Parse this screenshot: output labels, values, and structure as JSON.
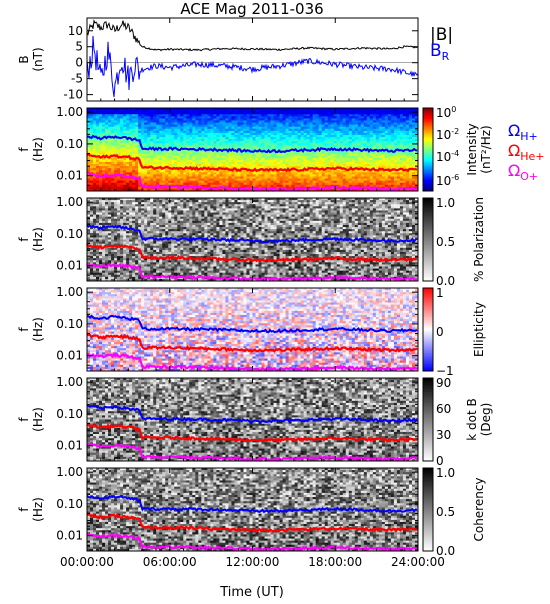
{
  "chart_data": {
    "type": "heatmap",
    "title": "ACE Mag 2011-036",
    "xlabel": "Time (UT)",
    "xticks": [
      "00:00:00",
      "06:00:00",
      "12:00:00",
      "18:00:00",
      "24:00:00"
    ],
    "xlim_hours": [
      0,
      24
    ],
    "line_colors": {
      "h": "#0000ff",
      "he": "#ff0000",
      "o": "#ff00ff"
    },
    "panels": [
      {
        "id": "b",
        "type": "line",
        "ylabel_top": "B",
        "ylabel_bot": "(nT)",
        "yticks": [
          "10",
          "5",
          "0",
          "-5",
          "-10"
        ],
        "ylim": [
          -12,
          14
        ],
        "legend": {
          "b": "|B|",
          "br_main": "B",
          "br_sub": "R"
        },
        "series": [
          {
            "key": "b",
            "color": "#000000",
            "x": [
              0,
              0.5,
              1,
              1.5,
              2,
              2.5,
              3,
              3.5,
              3.8,
              4,
              5,
              6,
              8,
              10,
              12,
              14,
              16,
              18,
              20,
              22,
              23,
              24
            ],
            "y": [
              9,
              12,
              11,
              12,
              10,
              12,
              11,
              8,
              6,
              5,
              4,
              4.2,
              4,
              4.4,
              4.3,
              4.1,
              4.6,
              4.2,
              4.6,
              4.3,
              5,
              4.8
            ]
          },
          {
            "key": "br",
            "color": "#0000ff",
            "x": [
              0,
              0.5,
              1,
              1.5,
              2,
              2.5,
              3,
              3.5,
              3.8,
              4,
              5,
              6,
              8,
              10,
              12,
              14,
              16,
              18,
              20,
              22,
              23,
              24
            ],
            "y": [
              -3,
              5,
              -6,
              4,
              -8,
              2,
              -5,
              0,
              -3,
              -2,
              -1,
              -1.5,
              -0.5,
              -1,
              -2,
              -1,
              0.5,
              -0.5,
              -1.5,
              -2,
              -3,
              -4
            ]
          }
        ]
      },
      {
        "id": "spec",
        "type": "spectrogram",
        "ylabel_top": "f",
        "ylabel_bot": "(Hz)",
        "yticks": [
          "1.00",
          "0.10",
          "0.01"
        ],
        "cbar": {
          "kind": "jet",
          "label_line1": "Intensity",
          "label_line2": "(nT²/Hz)",
          "ticks": [
            {
              "base": "10",
              "exp": "0"
            },
            {
              "base": "10",
              "exp": "-2"
            },
            {
              "base": "10",
              "exp": "-4"
            },
            {
              "base": "10",
              "exp": "-6"
            }
          ]
        },
        "legend": [
          {
            "main": "Ω",
            "sub": "H+",
            "color": "#0000ff"
          },
          {
            "main": "Ω",
            "sub": "He+",
            "color": "#ff0000"
          },
          {
            "main": "Ω",
            "sub": "O+",
            "color": "#ff00ff"
          }
        ]
      },
      {
        "id": "pol",
        "type": "spectrogram",
        "ylabel_top": "f",
        "ylabel_bot": "(Hz)",
        "yticks": [
          "1.00",
          "0.10",
          "0.01"
        ],
        "cbar": {
          "kind": "gray",
          "label_line1": "% Polarization",
          "label_line2": "",
          "ticks_text": [
            "1.0",
            "0.5",
            "0.0"
          ]
        }
      },
      {
        "id": "ell",
        "type": "spectrogram",
        "ylabel_top": "f",
        "ylabel_bot": "(Hz)",
        "yticks": [
          "1.00",
          "0.10",
          "0.01"
        ],
        "cbar": {
          "kind": "bwr",
          "label_line1": "Ellipticity",
          "label_line2": "",
          "ticks_text": [
            "1",
            "0",
            "−1"
          ]
        }
      },
      {
        "id": "kdb",
        "type": "spectrogram",
        "ylabel_top": "f",
        "ylabel_bot": "(Hz)",
        "yticks": [
          "1.00",
          "0.10",
          "0.01"
        ],
        "cbar": {
          "kind": "gray",
          "label_line1": "k dot B",
          "label_line2": "(Deg)",
          "ticks_text": [
            "90",
            "60",
            "30",
            "0"
          ]
        }
      },
      {
        "id": "coh",
        "type": "spectrogram",
        "ylabel_top": "f",
        "ylabel_bot": "(Hz)",
        "yticks": [
          "1.00",
          "0.10",
          "0.01"
        ],
        "cbar": {
          "kind": "gray",
          "label_line1": "Coherency",
          "label_line2": "",
          "ticks_text": [
            "1.0",
            "0.5",
            "0.0"
          ]
        }
      }
    ],
    "gyro_lines_hz": {
      "x": [
        0,
        1,
        2,
        3,
        3.8,
        4,
        6,
        8,
        10,
        12,
        14,
        16,
        18,
        20,
        22,
        24
      ],
      "h": [
        0.18,
        0.15,
        0.17,
        0.15,
        0.13,
        0.07,
        0.07,
        0.068,
        0.065,
        0.06,
        0.06,
        0.065,
        0.07,
        0.065,
        0.06,
        0.065
      ],
      "he": [
        0.045,
        0.038,
        0.042,
        0.038,
        0.033,
        0.018,
        0.018,
        0.017,
        0.016,
        0.015,
        0.015,
        0.016,
        0.017,
        0.016,
        0.015,
        0.016
      ],
      "o": [
        0.011,
        0.0095,
        0.0105,
        0.0095,
        0.0083,
        0.0045,
        0.0045,
        0.0043,
        0.0041,
        0.0038,
        0.0038,
        0.004,
        0.0043,
        0.004,
        0.0038,
        0.004
      ]
    }
  }
}
